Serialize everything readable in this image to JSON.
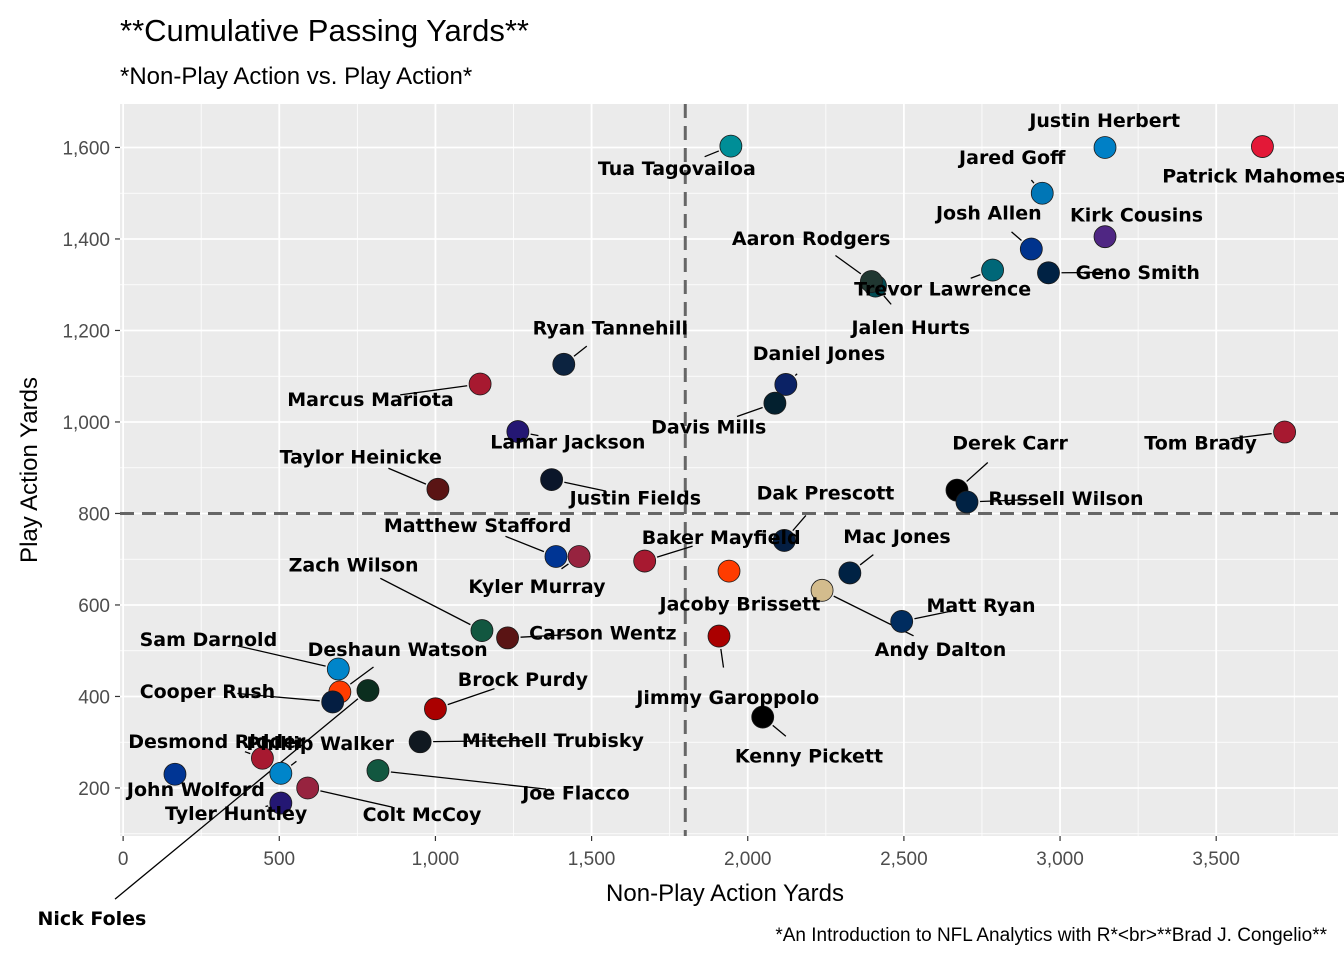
{
  "chart_data": {
    "type": "scatter",
    "title": "**Cumulative Passing Yards**",
    "subtitle": "*Non-Play Action vs. Play Action*",
    "xlabel": "Non-Play Action Yards",
    "ylabel": "Play Action Yards",
    "caption": "*An Introduction to NFL Analytics with R*<br>**Brad J. Congelio**",
    "xlim": [
      -10,
      3890
    ],
    "ylim": [
      95,
      1695
    ],
    "xticks": [
      0,
      500,
      1000,
      1500,
      2000,
      2500,
      3000,
      3500
    ],
    "xtick_labels": [
      "0",
      "500",
      "1,000",
      "1,500",
      "2,000",
      "2,500",
      "3,000",
      "3,500"
    ],
    "yticks": [
      200,
      400,
      600,
      800,
      1000,
      1200,
      1400,
      1600
    ],
    "ytick_labels": [
      "200",
      "400",
      "600",
      "800",
      "1,000",
      "1,200",
      "1,400",
      "1,600"
    ],
    "vline": 1800,
    "hline": 800,
    "grid": true,
    "legend": "none",
    "points": [
      {
        "label": "Tua Tagovailoa",
        "x": 1946,
        "y": 1603,
        "color": "#008E97",
        "lx": 1773,
        "ly": 1540,
        "anchor": "middle"
      },
      {
        "label": "Justin Herbert",
        "x": 3144,
        "y": 1600,
        "color": "#0080C6",
        "lx": 3143,
        "ly": 1645,
        "anchor": "middle"
      },
      {
        "label": "Patrick Mahomes",
        "x": 3648,
        "y": 1602,
        "color": "#E31837",
        "lx": 3622,
        "ly": 1523,
        "anchor": "middle"
      },
      {
        "label": "Jared Goff",
        "x": 2943,
        "y": 1500,
        "color": "#0076B6",
        "lx": 2847,
        "ly": 1564,
        "anchor": "middle"
      },
      {
        "label": "Josh Allen",
        "x": 2908,
        "y": 1378,
        "color": "#00338D",
        "lx": 2772,
        "ly": 1443,
        "anchor": "middle"
      },
      {
        "label": "Kirk Cousins",
        "x": 3144,
        "y": 1405,
        "color": "#4F2683",
        "lx": 3245,
        "ly": 1438,
        "anchor": "middle"
      },
      {
        "label": "Geno Smith",
        "x": 2963,
        "y": 1326,
        "color": "#002244",
        "lx": 3249,
        "ly": 1312,
        "anchor": "middle"
      },
      {
        "label": "Trevor Lawrence",
        "x": 2784,
        "y": 1332,
        "color": "#006778",
        "lx": 2624,
        "ly": 1276,
        "anchor": "middle"
      },
      {
        "label": "Jalen Hurts",
        "x": 2409,
        "y": 1297,
        "color": "#004C54",
        "lx": 2522,
        "ly": 1192,
        "anchor": "middle"
      },
      {
        "label": "Aaron Rodgers",
        "x": 2396,
        "y": 1307,
        "color": "#203731",
        "lx": 2203,
        "ly": 1387,
        "anchor": "middle"
      },
      {
        "label": "Ryan Tannehill",
        "x": 1411,
        "y": 1126,
        "color": "#0C2340",
        "lx": 1560,
        "ly": 1191,
        "anchor": "middle"
      },
      {
        "label": "Daniel Jones",
        "x": 2122,
        "y": 1082,
        "color": "#0B2265",
        "lx": 2228,
        "ly": 1135,
        "anchor": "middle"
      },
      {
        "label": "Davis Mills",
        "x": 2087,
        "y": 1041,
        "color": "#03202F",
        "lx": 1875,
        "ly": 975,
        "anchor": "middle"
      },
      {
        "label": "Marcus Mariota",
        "x": 1143,
        "y": 1083,
        "color": "#A71930",
        "lx": 792,
        "ly": 1035,
        "anchor": "middle"
      },
      {
        "label": "Lamar Jackson",
        "x": 1264,
        "y": 979,
        "color": "#241773",
        "lx": 1424,
        "ly": 942,
        "anchor": "middle"
      },
      {
        "label": "Taylor Heinicke",
        "x": 1008,
        "y": 853,
        "color": "#5A1414",
        "lx": 761,
        "ly": 909,
        "anchor": "middle"
      },
      {
        "label": "Justin Fields",
        "x": 1372,
        "y": 874,
        "color": "#0B162A",
        "lx": 1640,
        "ly": 820,
        "anchor": "middle"
      },
      {
        "label": "Tom Brady",
        "x": 3719,
        "y": 978,
        "color": "#A71930",
        "lx": 3450,
        "ly": 940,
        "anchor": "middle"
      },
      {
        "label": "Derek Carr",
        "x": 2670,
        "y": 851,
        "color": "#000000",
        "lx": 2840,
        "ly": 940,
        "anchor": "middle"
      },
      {
        "label": "Russell Wilson",
        "x": 2702,
        "y": 825,
        "color": "#002244",
        "lx": 3019,
        "ly": 818,
        "anchor": "middle"
      },
      {
        "label": "Dak Prescott",
        "x": 2117,
        "y": 741,
        "color": "#041E42",
        "lx": 2249,
        "ly": 830,
        "anchor": "middle"
      },
      {
        "label": "Matthew Stafford",
        "x": 1386,
        "y": 706,
        "color": "#003594",
        "lx": 1135,
        "ly": 759,
        "anchor": "middle"
      },
      {
        "label": "Kyler Murray",
        "x": 1460,
        "y": 706,
        "color": "#97233F",
        "lx": 1325,
        "ly": 626,
        "anchor": "middle"
      },
      {
        "label": "Baker Mayfield",
        "x": 1670,
        "y": 696,
        "color": "#A71930",
        "lx": 1915,
        "ly": 733,
        "anchor": "middle"
      },
      {
        "label": "Mac Jones",
        "x": 2327,
        "y": 670,
        "color": "#002244",
        "lx": 2478,
        "ly": 735,
        "anchor": "middle"
      },
      {
        "label": "Jacoby Brissett",
        "x": 1940,
        "y": 674,
        "color": "#FF3C00",
        "lx": 1975,
        "ly": 588,
        "anchor": "middle"
      },
      {
        "label": "Zach Wilson",
        "x": 1149,
        "y": 544,
        "color": "#125740",
        "lx": 738,
        "ly": 673,
        "anchor": "middle"
      },
      {
        "label": "Carson Wentz",
        "x": 1231,
        "y": 528,
        "color": "#5A1414",
        "lx": 1536,
        "ly": 524,
        "anchor": "middle"
      },
      {
        "label": "Andy Dalton",
        "x": 2238,
        "y": 632,
        "color": "#D3BC8D",
        "lx": 2617,
        "ly": 488,
        "anchor": "middle"
      },
      {
        "label": "Matt Ryan",
        "x": 2493,
        "y": 564,
        "color": "#002C5F",
        "lx": 2747,
        "ly": 585,
        "anchor": "middle"
      },
      {
        "label": "Jimmy Garoppolo",
        "x": 1908,
        "y": 532,
        "color": "#AA0000",
        "lx": 1936,
        "ly": 383,
        "anchor": "middle"
      },
      {
        "label": "Sam Darnold",
        "x": 689,
        "y": 460,
        "color": "#0085CA",
        "lx": 273,
        "ly": 510,
        "anchor": "middle"
      },
      {
        "label": "Deshaun Watson",
        "x": 694,
        "y": 410,
        "color": "#FF3C00",
        "lx": 879,
        "ly": 488,
        "anchor": "middle"
      },
      {
        "label": "Cooper Rush",
        "x": 671,
        "y": 388,
        "color": "#041E42",
        "lx": 270,
        "ly": 397,
        "anchor": "middle"
      },
      {
        "label": "Nick Foles",
        "x": 784,
        "y": 413,
        "color": "#0B2E1F",
        "lx": -100,
        "ly": -100,
        "anchor": "middle"
      },
      {
        "label": "Brock Purdy",
        "x": 1000,
        "y": 373,
        "color": "#AA0000",
        "lx": 1280,
        "ly": 423,
        "anchor": "middle"
      },
      {
        "label": "Mitchell Trubisky",
        "x": 951,
        "y": 301,
        "color": "#101820",
        "lx": 1376,
        "ly": 289,
        "anchor": "middle"
      },
      {
        "label": "Kenny Pickett",
        "x": 2048,
        "y": 355,
        "color": "#000000",
        "lx": 2196,
        "ly": 256,
        "anchor": "middle"
      },
      {
        "label": "Desmond Ridder",
        "x": 446,
        "y": 265,
        "color": "#A71930",
        "lx": 300,
        "ly": 287,
        "anchor": "middle"
      },
      {
        "label": "Phillip Walker",
        "x": 505,
        "y": 232,
        "color": "#0085CA",
        "lx": 631,
        "ly": 283,
        "anchor": "middle"
      },
      {
        "label": "John Wolford",
        "x": 166,
        "y": 230,
        "color": "#003594",
        "lx": 233,
        "ly": 182,
        "anchor": "middle"
      },
      {
        "label": "Joe Flacco",
        "x": 816,
        "y": 238,
        "color": "#125740",
        "lx": 1450,
        "ly": 175,
        "anchor": "middle"
      },
      {
        "label": "Colt McCoy",
        "x": 591,
        "y": 200,
        "color": "#97233F",
        "lx": 957,
        "ly": 128,
        "anchor": "middle"
      },
      {
        "label": "Tyler Huntley",
        "x": 505,
        "y": 167,
        "color": "#241773",
        "lx": 362,
        "ly": 130,
        "anchor": "middle"
      }
    ]
  }
}
